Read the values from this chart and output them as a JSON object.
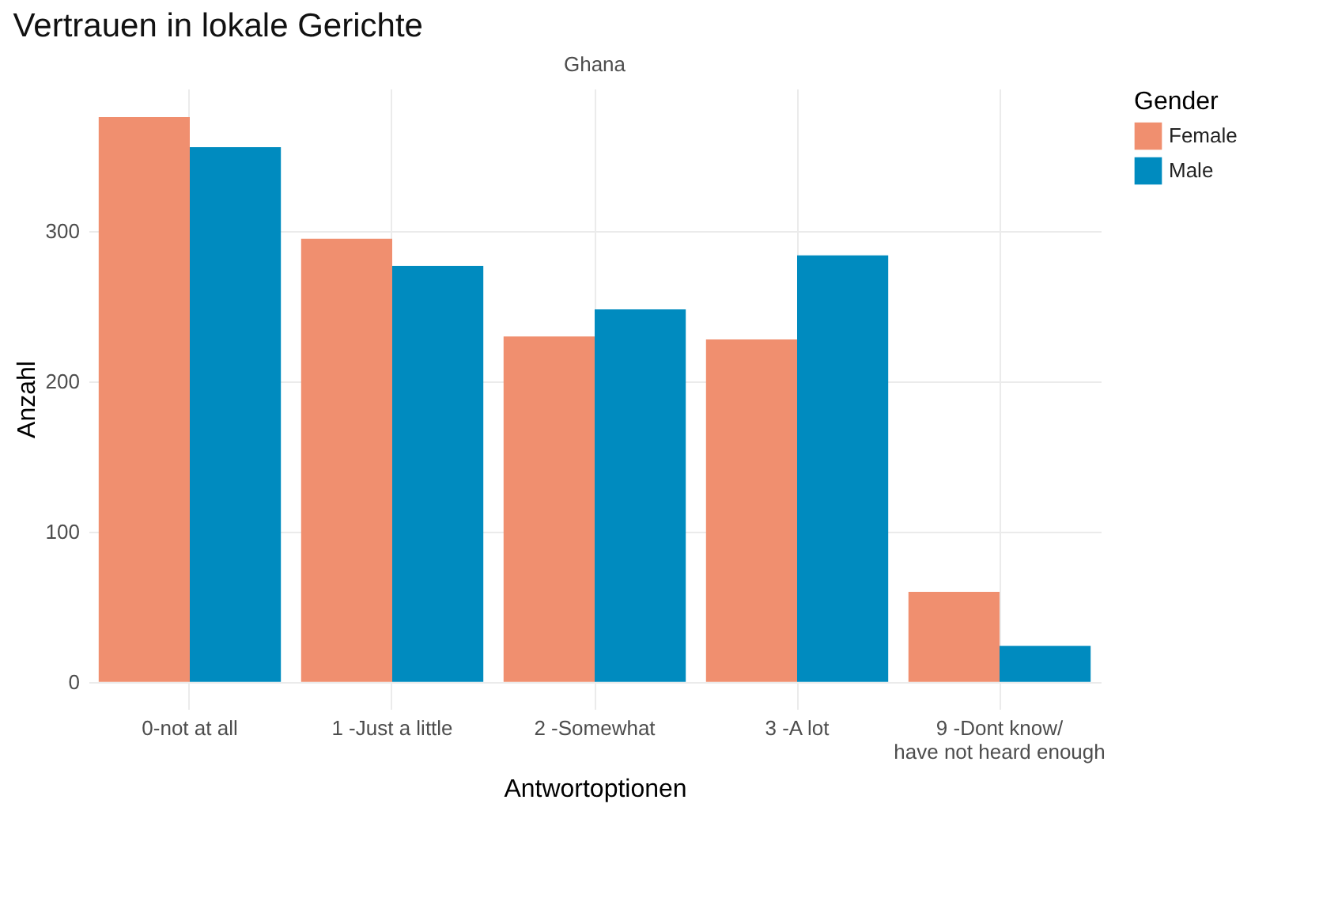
{
  "chart_data": {
    "type": "bar",
    "title": "Vertrauen in lokale Gerichte",
    "subtitle": "Ghana",
    "xlabel": "Antwortoptionen",
    "ylabel": "Anzahl",
    "legend_title": "Gender",
    "categories": [
      "0-not at all",
      "1 -Just a little",
      "2 -Somewhat",
      "3 -A lot",
      "9 -Dont know/\nhave not heard enough"
    ],
    "series": [
      {
        "name": "Female",
        "color": "#f08f6f",
        "values": [
          376,
          295,
          230,
          228,
          60
        ]
      },
      {
        "name": "Male",
        "color": "#008bbf",
        "values": [
          356,
          277,
          248,
          284,
          24
        ]
      }
    ],
    "ylim": [
      -18,
      395
    ],
    "yticks": [
      0,
      100,
      200,
      300
    ],
    "grid": true,
    "legend": "right"
  }
}
